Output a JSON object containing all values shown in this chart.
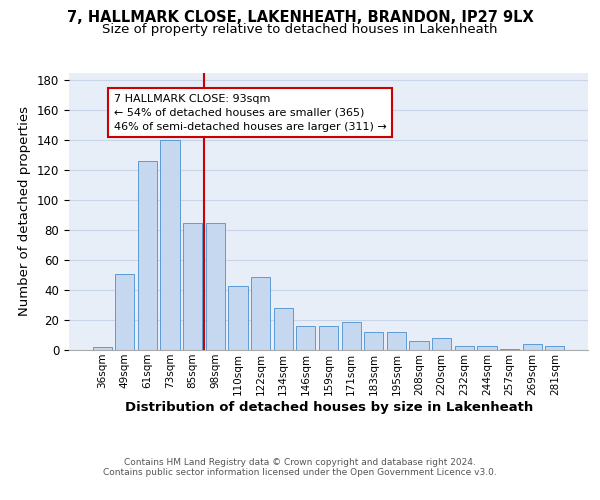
{
  "title_line1": "7, HALLMARK CLOSE, LAKENHEATH, BRANDON, IP27 9LX",
  "title_line2": "Size of property relative to detached houses in Lakenheath",
  "xlabel": "Distribution of detached houses by size in Lakenheath",
  "ylabel": "Number of detached properties",
  "categories": [
    "36sqm",
    "49sqm",
    "61sqm",
    "73sqm",
    "85sqm",
    "98sqm",
    "110sqm",
    "122sqm",
    "134sqm",
    "146sqm",
    "159sqm",
    "171sqm",
    "183sqm",
    "195sqm",
    "208sqm",
    "220sqm",
    "232sqm",
    "244sqm",
    "257sqm",
    "269sqm",
    "281sqm"
  ],
  "values": [
    2,
    51,
    126,
    140,
    85,
    85,
    43,
    49,
    28,
    16,
    16,
    19,
    12,
    12,
    6,
    8,
    3,
    3,
    1,
    4,
    3
  ],
  "bar_color": "#c5d8f0",
  "bar_edge_color": "#5b9bd5",
  "grid_color": "#c8d4e8",
  "background_color": "#e8eef8",
  "vline_x": 4.5,
  "vline_color": "#cc0000",
  "annotation_text": "7 HALLMARK CLOSE: 93sqm\n← 54% of detached houses are smaller (365)\n46% of semi-detached houses are larger (311) →",
  "ylim": [
    0,
    185
  ],
  "yticks": [
    0,
    20,
    40,
    60,
    80,
    100,
    120,
    140,
    160,
    180
  ],
  "footer_line1": "Contains HM Land Registry data © Crown copyright and database right 2024.",
  "footer_line2": "Contains public sector information licensed under the Open Government Licence v3.0.",
  "title_fontsize": 10.5,
  "subtitle_fontsize": 9.5,
  "axis_label_fontsize": 9.5,
  "tick_fontsize": 7.5,
  "ytick_fontsize": 8.5,
  "annotation_fontsize": 8,
  "footer_fontsize": 6.5
}
